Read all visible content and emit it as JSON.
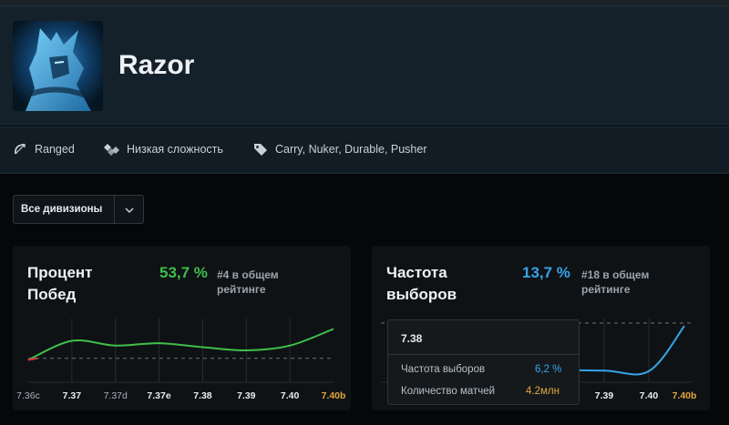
{
  "hero": {
    "name": "Razor",
    "portrait": "razor-portrait"
  },
  "attributes": [
    {
      "icon": "bow-icon",
      "label": "Ranged"
    },
    {
      "icon": "complexity-icon",
      "label": "Низкая сложность"
    },
    {
      "icon": "tag-icon",
      "label": "Carry, Nuker, Durable, Pusher"
    }
  ],
  "filter": {
    "selected": "Все дивизионы",
    "icon": "chevron-down-icon"
  },
  "cards": {
    "winrate": {
      "title": "Процент Побед",
      "value": "53,7 %",
      "rank": "#4 в общем рейтинге",
      "value_color": "#3fbf4a"
    },
    "pickrate": {
      "title": "Частота выборов",
      "value": "13,7 %",
      "rank": "#18 в общем рейтинге",
      "value_color": "#35a4e8"
    }
  },
  "tooltip": {
    "patch": "7.38",
    "rows": [
      {
        "label": "Частота выборов",
        "value": "6,2 %",
        "color": "#35a4e8"
      },
      {
        "label": "Количество матчей",
        "value": "4.2млн",
        "color": "#e3a63c"
      }
    ]
  },
  "chart_data": [
    {
      "type": "line",
      "x": [
        "7.36c",
        "7.37",
        "7.37d",
        "7.37e",
        "7.38",
        "7.39",
        "7.40",
        "7.40b"
      ],
      "tick_bold": [
        false,
        true,
        false,
        true,
        true,
        true,
        true,
        true
      ],
      "tick_highlight": [
        false,
        false,
        false,
        false,
        false,
        false,
        false,
        true
      ],
      "series": [
        {
          "values": [
            49.8,
            52.2,
            51.6,
            51.9,
            51.4,
            51.0,
            51.6,
            53.7
          ],
          "color": "#3fbf4a"
        }
      ],
      "baseline": 50,
      "ylim": [
        47,
        55
      ],
      "grid": "vertical"
    },
    {
      "type": "line",
      "x": [
        "7.38",
        "7.39",
        "7.40",
        "7.40b"
      ],
      "series": [
        {
          "values": [
            6.2,
            6.0,
            5.9,
            13.7
          ],
          "color": "#35a4e8"
        }
      ],
      "ylim": [
        4,
        15
      ],
      "grid": "vertical"
    }
  ]
}
